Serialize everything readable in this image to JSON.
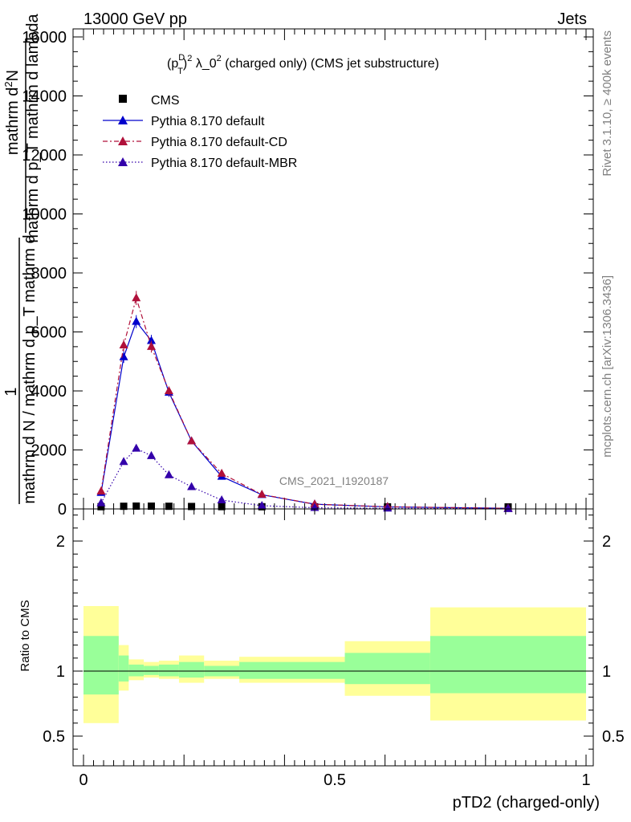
{
  "header": {
    "left": "13000 GeV pp",
    "right": "Jets"
  },
  "side": {
    "rivet": "Rivet 3.1.10, ≥ 400k events",
    "mcplots": "mcplots.cern.ch [arXiv:1306.3436]"
  },
  "chart_data": [
    {
      "type": "line",
      "title_pre": "(p",
      "title_sup1": "D",
      "title_sub": "T",
      "title_sup2": "2",
      "title_post": " λ_0",
      "title_sup3": "2",
      "title_tail": " (charged only) (CMS jet substructure)",
      "watermark": "CMS_2021_I1920187",
      "ylabel": {
        "num_a": "mathrm d",
        "num_b": "N",
        "den": "mathrm d p_T mathrm d lambda",
        "tail": "1",
        "lower_num": "mathrm d N / mathrm d p_T mathrm d",
        "lower_den": "mathrm d N"
      },
      "xlim": [
        0,
        1
      ],
      "ylim": [
        0,
        16000
      ],
      "yticks": [
        {
          "v": 0,
          "label": "0"
        },
        {
          "v": 2000,
          "label": "2000"
        },
        {
          "v": 4000,
          "label": "4000"
        },
        {
          "v": 6000,
          "label": "6000"
        },
        {
          "v": 8000,
          "label": "8000"
        },
        {
          "v": 10000,
          "label": "10000"
        },
        {
          "v": 12000,
          "label": "12000"
        },
        {
          "v": 14000,
          "label": "14000"
        },
        {
          "v": 16000,
          "label": "16000"
        }
      ],
      "legend": {
        "cms": "CMS",
        "default": "Pythia 8.170 default",
        "cd": "Pythia 8.170 default-CD",
        "mbr": "Pythia 8.170 default-MBR"
      },
      "series": [
        {
          "key": "cms",
          "name": "CMS",
          "color": "#000000",
          "x": [
            0.035,
            0.08,
            0.105,
            0.135,
            0.17,
            0.215,
            0.275,
            0.355,
            0.46,
            0.605,
            0.845
          ],
          "y": [
            8,
            22,
            28,
            26,
            22,
            15,
            10,
            6,
            3,
            2,
            1
          ]
        },
        {
          "key": "default",
          "name": "Pythia 8.170 default",
          "color": "#0000cc",
          "x": [
            0.035,
            0.08,
            0.105,
            0.135,
            0.17,
            0.215,
            0.275,
            0.355,
            0.46,
            0.605,
            0.845
          ],
          "y": [
            550,
            5150,
            6350,
            5700,
            3950,
            2300,
            1100,
            480,
            160,
            70,
            20
          ],
          "err": [
            40,
            200,
            220,
            200,
            150,
            100,
            60,
            30,
            15,
            8,
            4
          ]
        },
        {
          "key": "cd",
          "name": "Pythia 8.170 default-CD",
          "color": "#b0103a",
          "x": [
            0.035,
            0.08,
            0.105,
            0.135,
            0.17,
            0.215,
            0.275,
            0.355,
            0.46,
            0.605,
            0.845
          ],
          "y": [
            600,
            5550,
            7150,
            5500,
            4000,
            2300,
            1200,
            490,
            160,
            75,
            20
          ],
          "err": [
            40,
            200,
            240,
            200,
            150,
            100,
            60,
            30,
            15,
            8,
            4
          ]
        },
        {
          "key": "mbr",
          "name": "Pythia 8.170 default-MBR",
          "color": "#3300aa",
          "x": [
            0.035,
            0.08,
            0.105,
            0.135,
            0.17,
            0.215,
            0.275,
            0.355,
            0.46,
            0.605,
            0.845
          ],
          "y": [
            200,
            1600,
            2050,
            1800,
            1150,
            750,
            300,
            110,
            40,
            20,
            5
          ],
          "err": [
            20,
            80,
            90,
            80,
            60,
            40,
            20,
            10,
            5,
            3,
            2
          ]
        }
      ]
    },
    {
      "type": "area",
      "ylabel": "Ratio to CMS",
      "xlabel": "pTD2 (charged-only)",
      "xlim": [
        0,
        1
      ],
      "ylim": [
        0.35,
        2.3
      ],
      "yticks": [
        {
          "v": 0.5,
          "label": "0.5"
        },
        {
          "v": 1,
          "label": "1"
        },
        {
          "v": 2,
          "label": "2"
        }
      ],
      "xticks": [
        {
          "v": 0,
          "label": "0"
        },
        {
          "v": 0.5,
          "label": "0.5"
        },
        {
          "v": 1,
          "label": "1"
        }
      ],
      "bands": [
        {
          "x0": 0.0,
          "x1": 0.07,
          "y_lo": 0.6,
          "y_hi": 1.5,
          "s_lo": 0.82,
          "s_hi": 1.27
        },
        {
          "x0": 0.07,
          "x1": 0.09,
          "y_lo": 0.85,
          "y_hi": 1.2,
          "s_lo": 0.92,
          "s_hi": 1.12
        },
        {
          "x0": 0.09,
          "x1": 0.12,
          "y_lo": 0.93,
          "y_hi": 1.09,
          "s_lo": 0.96,
          "s_hi": 1.05
        },
        {
          "x0": 0.12,
          "x1": 0.15,
          "y_lo": 0.95,
          "y_hi": 1.07,
          "s_lo": 0.97,
          "s_hi": 1.04
        },
        {
          "x0": 0.15,
          "x1": 0.19,
          "y_lo": 0.94,
          "y_hi": 1.08,
          "s_lo": 0.96,
          "s_hi": 1.05
        },
        {
          "x0": 0.19,
          "x1": 0.24,
          "y_lo": 0.91,
          "y_hi": 1.12,
          "s_lo": 0.95,
          "s_hi": 1.07
        },
        {
          "x0": 0.24,
          "x1": 0.31,
          "y_lo": 0.94,
          "y_hi": 1.08,
          "s_lo": 0.96,
          "s_hi": 1.04
        },
        {
          "x0": 0.31,
          "x1": 0.52,
          "y_lo": 0.91,
          "y_hi": 1.11,
          "s_lo": 0.94,
          "s_hi": 1.07
        },
        {
          "x0": 0.52,
          "x1": 0.69,
          "y_lo": 0.81,
          "y_hi": 1.23,
          "s_lo": 0.9,
          "s_hi": 1.14
        },
        {
          "x0": 0.69,
          "x1": 1.0,
          "y_lo": 0.62,
          "y_hi": 1.49,
          "s_lo": 0.83,
          "s_hi": 1.27
        }
      ],
      "ref": 1,
      "colors": {
        "outer": "#ffff99",
        "inner": "#99ff99"
      }
    }
  ]
}
